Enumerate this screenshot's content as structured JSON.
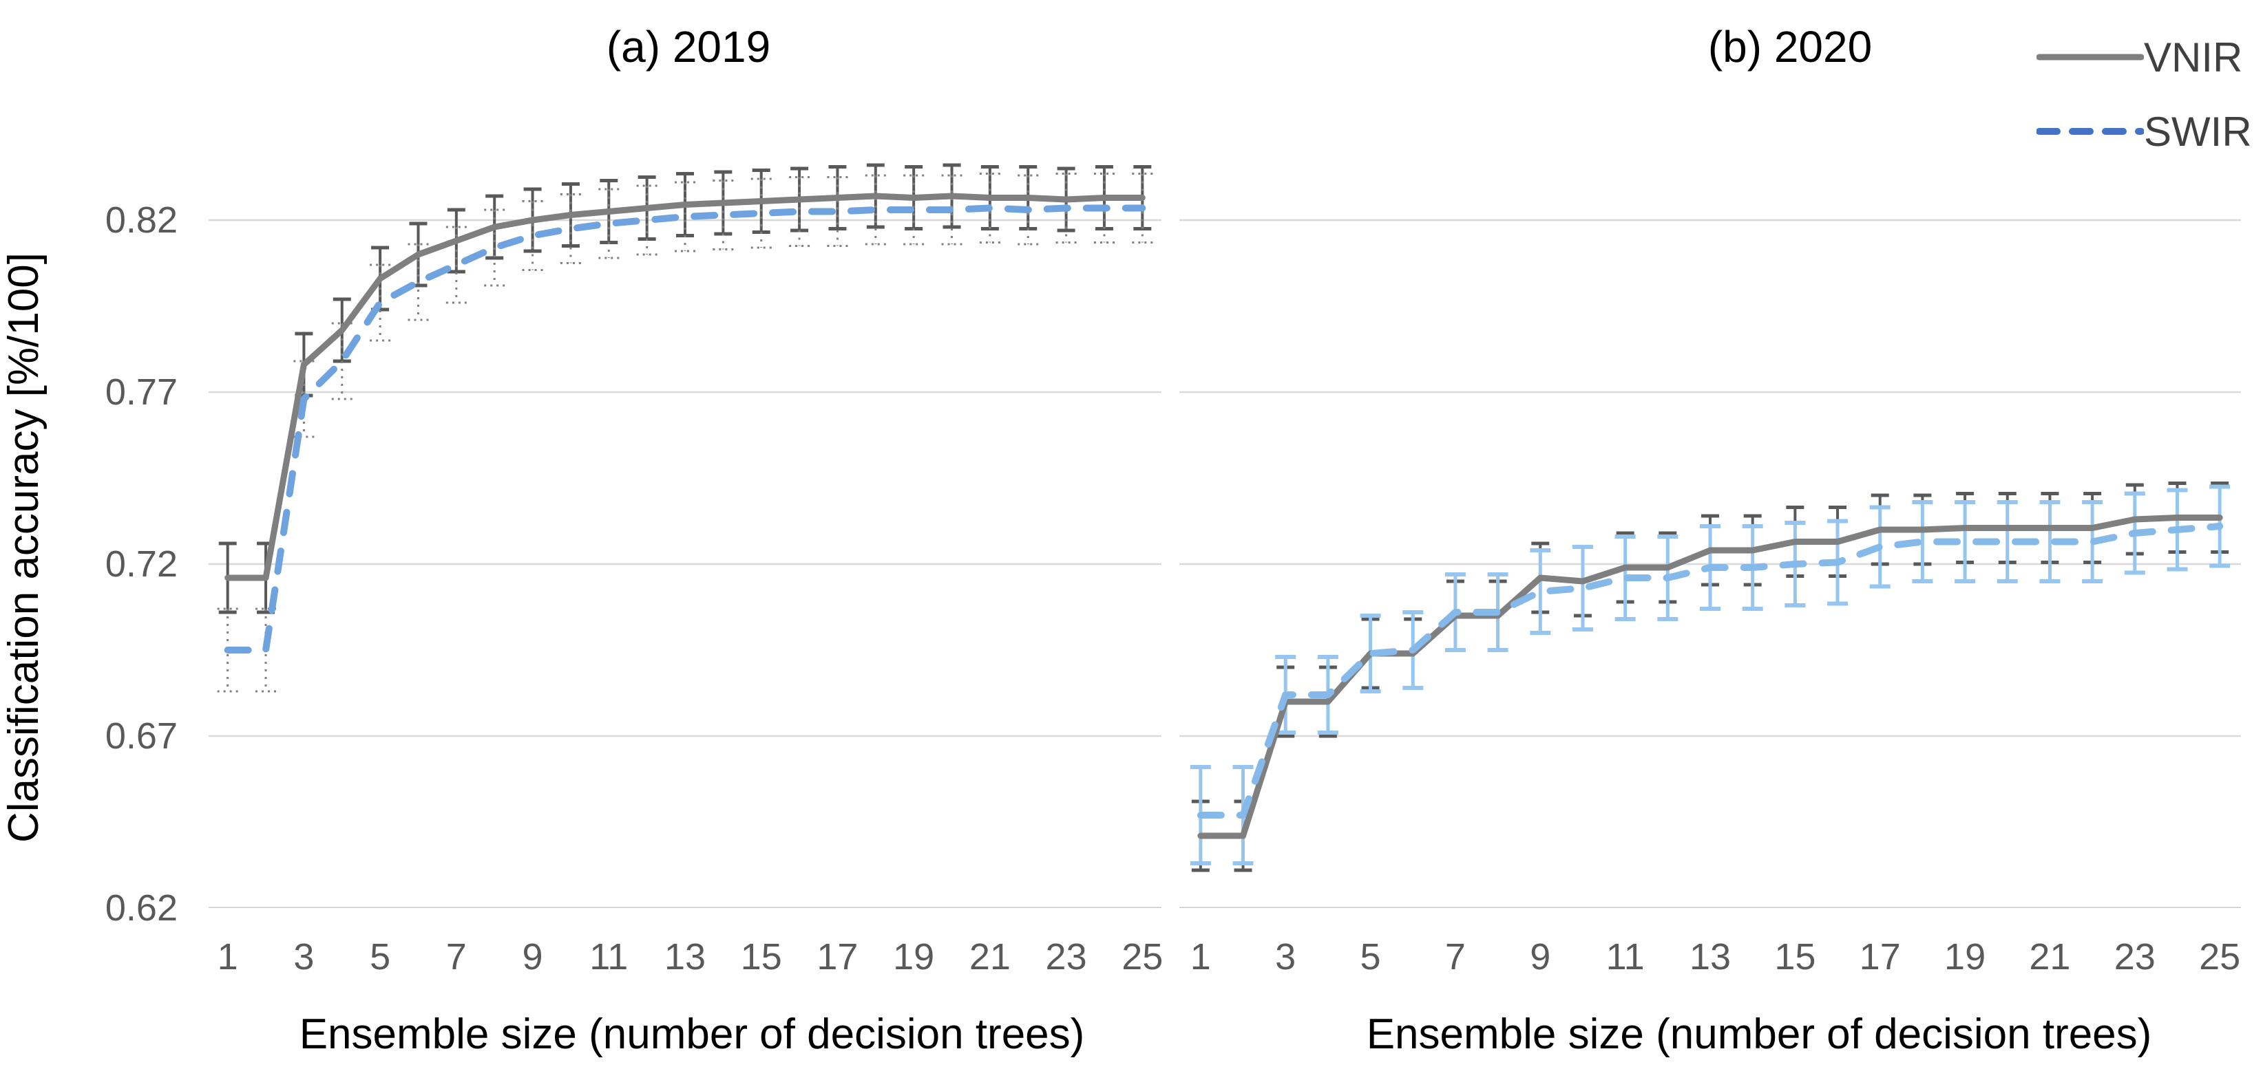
{
  "figure": {
    "panels": [
      {
        "title": "(a) 2019"
      },
      {
        "title": "(b) 2020"
      }
    ],
    "y_axis": {
      "title": "Classification accuracy [%/100]",
      "tick_labels": [
        "0.82",
        "0.77",
        "0.72",
        "0.67",
        "0.62"
      ],
      "min": 0.62,
      "max": 0.87,
      "gridline_step": 0.05
    },
    "x_axis": {
      "title": "Ensemble size (number of decision trees)",
      "tick_labels": [
        1,
        3,
        5,
        7,
        9,
        11,
        13,
        15,
        17,
        19,
        21,
        23,
        25
      ]
    },
    "legend": {
      "items": [
        {
          "label": "VNIR",
          "style": "solid"
        },
        {
          "label": "SWIR",
          "style": "dashed"
        }
      ]
    }
  },
  "colors": {
    "vnir_line": "#7f7f7f",
    "swir_line_2019": "#6FA3DF",
    "swir_line_2020": "#85B9EA",
    "vnir_err": "#595959",
    "swir_err_2019": "#808080",
    "swir_err_2020": "#96C6F0",
    "legend_swir": "#4472C4",
    "legend_vnir": "#7f7f7f",
    "grid": "#D9D9D9",
    "axis_line": "#C9C9C9",
    "tick_text": "#595959",
    "title_text": "#000000"
  },
  "chart_data": [
    {
      "type": "line",
      "title": "(a) 2019",
      "xlabel": "Ensemble size (number of decision trees)",
      "ylabel": "Classification accuracy [%/100]",
      "ylim": [
        0.62,
        0.87
      ],
      "grid": "horizontal",
      "legend_position": "top-right-outside",
      "x": [
        1,
        2,
        3,
        4,
        5,
        6,
        7,
        8,
        9,
        10,
        11,
        12,
        13,
        14,
        15,
        16,
        17,
        18,
        19,
        20,
        21,
        22,
        23,
        24,
        25
      ],
      "series": [
        {
          "name": "VNIR",
          "line_style": "solid",
          "error_style": "solid-gray",
          "values": [
            0.716,
            0.716,
            0.778,
            0.788,
            0.803,
            0.81,
            0.814,
            0.818,
            0.82,
            0.8215,
            0.8225,
            0.8235,
            0.8245,
            0.825,
            0.8255,
            0.826,
            0.8265,
            0.827,
            0.8265,
            0.827,
            0.8265,
            0.8265,
            0.826,
            0.8265,
            0.8265
          ],
          "errors": [
            0.01,
            0.01,
            0.009,
            0.009,
            0.009,
            0.009,
            0.009,
            0.009,
            0.009,
            0.009,
            0.009,
            0.009,
            0.009,
            0.009,
            0.009,
            0.009,
            0.009,
            0.009,
            0.009,
            0.009,
            0.009,
            0.009,
            0.009,
            0.009,
            0.009
          ]
        },
        {
          "name": "SWIR",
          "line_style": "dashed",
          "error_style": "dotted-gray",
          "values": [
            0.695,
            0.695,
            0.768,
            0.779,
            0.796,
            0.802,
            0.807,
            0.812,
            0.8155,
            0.8175,
            0.819,
            0.82,
            0.821,
            0.8215,
            0.822,
            0.8225,
            0.8225,
            0.823,
            0.823,
            0.823,
            0.8235,
            0.823,
            0.8235,
            0.8235,
            0.8235
          ],
          "errors": [
            0.012,
            0.012,
            0.011,
            0.011,
            0.011,
            0.011,
            0.011,
            0.011,
            0.01,
            0.01,
            0.01,
            0.01,
            0.01,
            0.01,
            0.01,
            0.01,
            0.01,
            0.01,
            0.01,
            0.01,
            0.01,
            0.01,
            0.01,
            0.01,
            0.01
          ]
        }
      ]
    },
    {
      "type": "line",
      "title": "(b) 2020",
      "xlabel": "Ensemble size (number of decision trees)",
      "ylabel": "Classification accuracy [%/100]",
      "ylim": [
        0.62,
        0.87
      ],
      "grid": "horizontal",
      "legend_position": "top-right-outside",
      "x": [
        1,
        2,
        3,
        4,
        5,
        6,
        7,
        8,
        9,
        10,
        11,
        12,
        13,
        14,
        15,
        16,
        17,
        18,
        19,
        20,
        21,
        22,
        23,
        24,
        25
      ],
      "series": [
        {
          "name": "VNIR",
          "line_style": "solid",
          "error_style": "solid-gray",
          "values": [
            0.641,
            0.641,
            0.68,
            0.68,
            0.694,
            0.694,
            0.705,
            0.705,
            0.716,
            0.715,
            0.719,
            0.719,
            0.724,
            0.724,
            0.7265,
            0.7265,
            0.73,
            0.73,
            0.7305,
            0.7305,
            0.7305,
            0.7305,
            0.733,
            0.7335,
            0.7335
          ],
          "errors": [
            0.01,
            0.01,
            0.01,
            0.01,
            0.01,
            0.01,
            0.01,
            0.01,
            0.01,
            0.01,
            0.01,
            0.01,
            0.01,
            0.01,
            0.01,
            0.01,
            0.01,
            0.01,
            0.01,
            0.01,
            0.01,
            0.01,
            0.01,
            0.01,
            0.01
          ]
        },
        {
          "name": "SWIR",
          "line_style": "dashed",
          "error_style": "solid-lightblue",
          "values": [
            0.647,
            0.647,
            0.682,
            0.682,
            0.694,
            0.695,
            0.706,
            0.706,
            0.712,
            0.713,
            0.716,
            0.716,
            0.719,
            0.719,
            0.72,
            0.7205,
            0.725,
            0.7265,
            0.7265,
            0.7265,
            0.7265,
            0.7265,
            0.729,
            0.73,
            0.731
          ],
          "errors": [
            0.014,
            0.014,
            0.011,
            0.011,
            0.011,
            0.011,
            0.011,
            0.011,
            0.012,
            0.012,
            0.012,
            0.012,
            0.012,
            0.012,
            0.012,
            0.012,
            0.0115,
            0.0115,
            0.0115,
            0.0115,
            0.0115,
            0.0115,
            0.0115,
            0.0115,
            0.0115
          ]
        }
      ]
    }
  ]
}
